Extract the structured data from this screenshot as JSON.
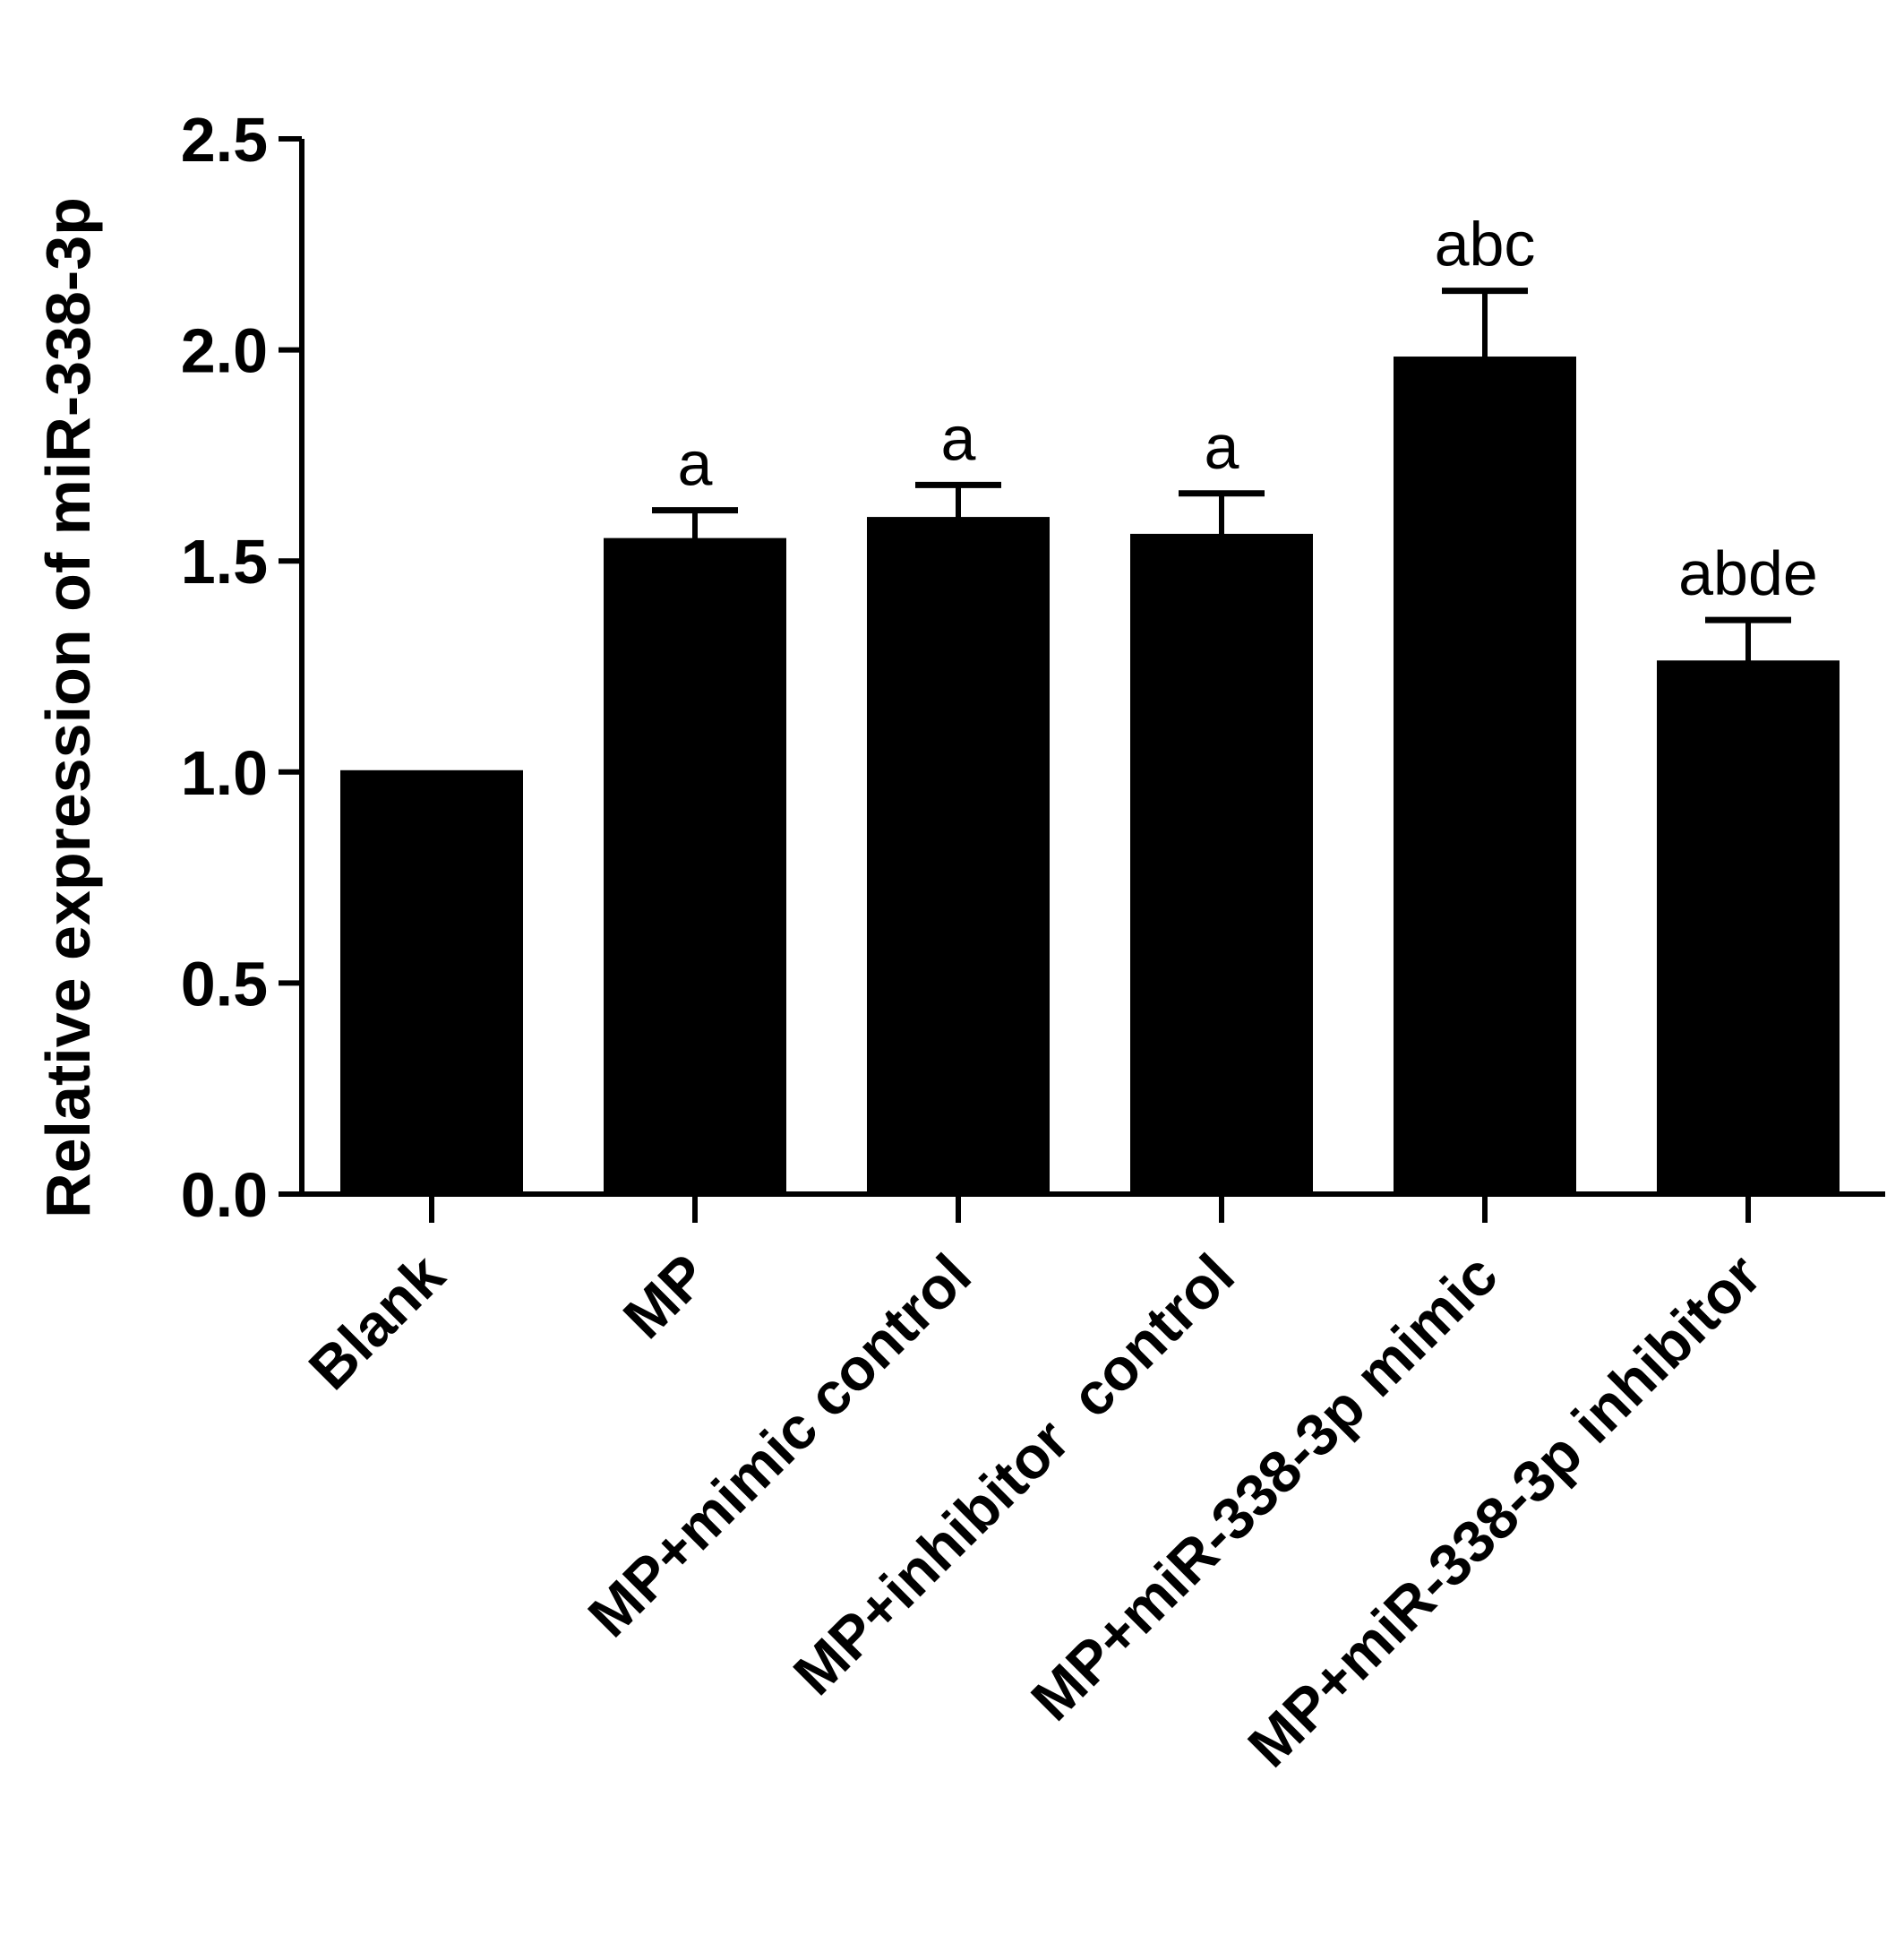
{
  "chart_data": {
    "type": "bar",
    "ylabel": "Relative expression of miR-338-3p",
    "xlabel": "",
    "ylim": [
      0,
      2.5
    ],
    "yticks": [
      "0.0",
      "0.5",
      "1.0",
      "1.5",
      "2.0",
      "2.5"
    ],
    "categories": [
      "Blank",
      "MP",
      "MP+mimic control",
      "MP+inhibitor  control",
      "MP+miR-338-3p mimic",
      "MP+miR-338-3p inhibitor"
    ],
    "values": [
      1.0,
      1.55,
      1.6,
      1.56,
      1.98,
      1.26
    ],
    "errors": [
      0.0,
      0.07,
      0.08,
      0.1,
      0.16,
      0.1
    ],
    "annotations": [
      "",
      "a",
      "a",
      "a",
      "abc",
      "abde"
    ],
    "bar_color": "#000000",
    "grid": false,
    "legend": "none"
  }
}
